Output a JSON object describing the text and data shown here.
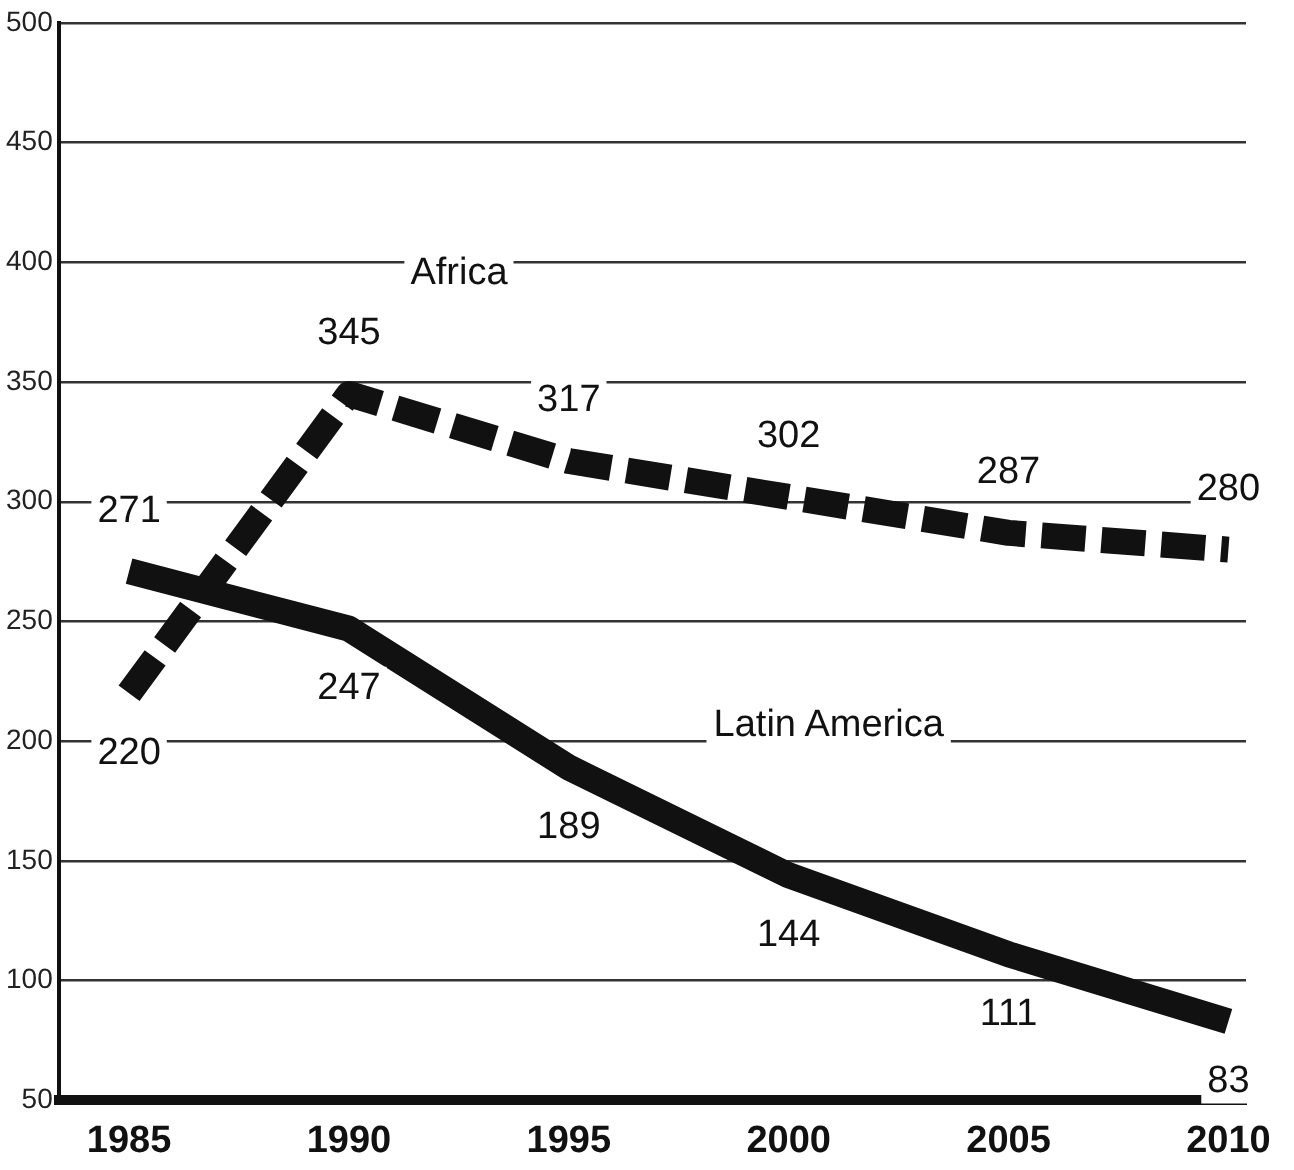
{
  "chart_data": {
    "type": "line",
    "x": [
      1985,
      1990,
      1995,
      2000,
      2005,
      2010
    ],
    "xlim": [
      1983.4,
      2010.4
    ],
    "xticks": [
      1985,
      1990,
      1995,
      2000,
      2005,
      2010
    ],
    "ylim": [
      50,
      500
    ],
    "yticks": [
      50,
      100,
      150,
      200,
      250,
      300,
      350,
      400,
      450,
      500
    ],
    "grid": "y",
    "legend": false,
    "marker": "none",
    "data_labels": true,
    "series": [
      {
        "name": "Africa",
        "color": "#111111",
        "line_style": "dashed",
        "values": [
          220,
          345,
          317,
          302,
          287,
          280
        ]
      },
      {
        "name": "Latin America",
        "color": "#111111",
        "line_style": "solid",
        "values": [
          271,
          247,
          189,
          144,
          111,
          83
        ]
      }
    ]
  }
}
